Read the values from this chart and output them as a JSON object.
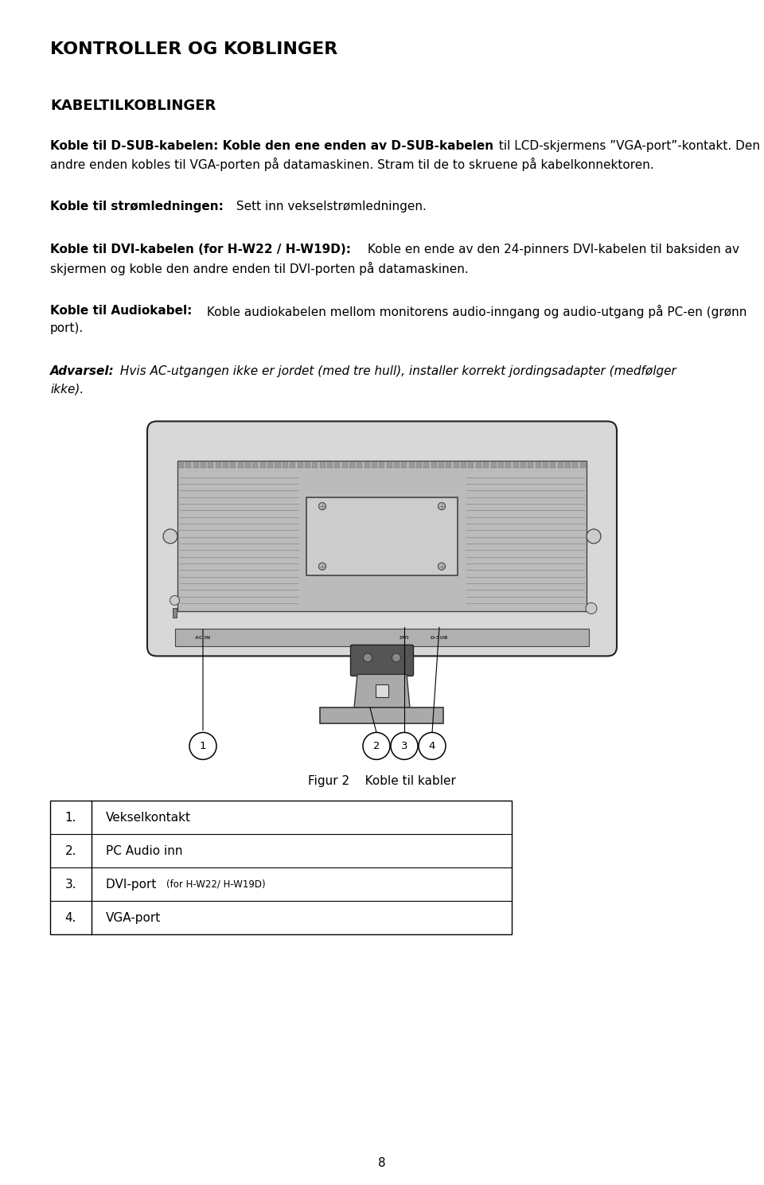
{
  "bg_color": "#ffffff",
  "page_width": 9.6,
  "page_height": 14.89,
  "title": "KONTROLLER OG KOBLINGER",
  "section_title": "KABELTILKOBLINGER",
  "para1_bold": "Koble til D-SUB-kabelen: Koble den ene enden av D-SUB-kabelen",
  "para1_normal": " til LCD-skjermens ”VGA-port”-kontakt. Den andre enden kobles til VGA-porten på datamaskinen. Stram til de to skruene på kabelkonnektoren.",
  "para2_bold": "Koble til strømledningen:",
  "para2_normal": " Sett inn vekselstrømledningen.",
  "para3_bold": "Koble til DVI-kabelen (for H-W22 / H-W19D):",
  "para3_normal": " Koble en ende av den 24-pinners DVI-kabelen til baksiden av skjermen og koble den andre enden til DVI-porten på datamaskinen.",
  "para4_bold": "Koble til Audiokabel:",
  "para4_normal": " Koble audiokabelen mellom monitorens audio-inngang og audio-utgang på PC-en (grønn port).",
  "warn_bold": "Advarsel:",
  "warn_italic": " Hvis AC-utgangen ikke er jordet (med tre hull), installer korrekt jordingsadapter (medfølger ikke).",
  "figure_caption_left": "Figur 2",
  "figure_caption_right": "Koble til kabler",
  "table_rows": [
    [
      "1.",
      "Vekselkontakt",
      false
    ],
    [
      "2.",
      "PC Audio inn",
      false
    ],
    [
      "3.",
      "DVI-port ",
      "(for H-W22/ H-W19D)",
      true
    ],
    [
      "4.",
      "VGA-port",
      false
    ]
  ],
  "page_number": "8",
  "ml": 0.63,
  "mr": 0.63,
  "mt": 0.52,
  "text_color": "#000000",
  "fontsize_title": 16,
  "fontsize_section": 13,
  "fontsize_body": 11,
  "fontsize_small": 8.5
}
